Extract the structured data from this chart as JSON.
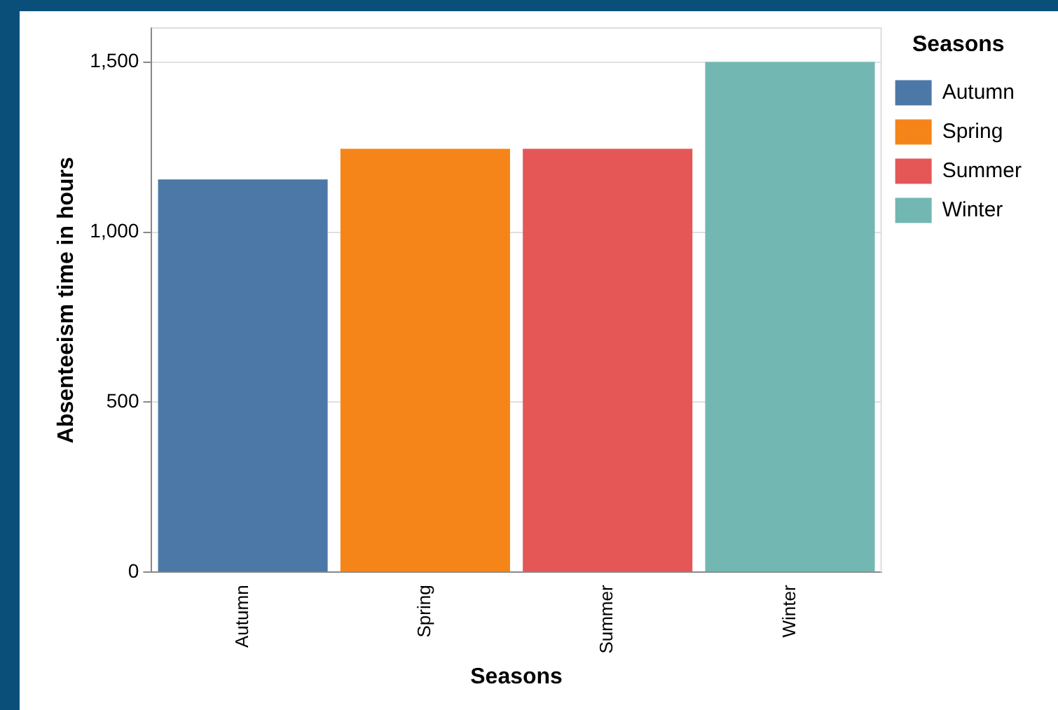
{
  "chart_data": {
    "type": "bar",
    "xlabel": "Seasons",
    "ylabel": "Absenteeism time in hours",
    "legend_title": "Seasons",
    "categories": [
      "Autumn",
      "Spring",
      "Summer",
      "Winter"
    ],
    "series": [
      {
        "name": "Autumn",
        "color": "#4c78a8",
        "values": [
          1155,
          null,
          null,
          null
        ]
      },
      {
        "name": "Spring",
        "color": "#f58518",
        "values": [
          null,
          1245,
          null,
          null
        ]
      },
      {
        "name": "Summer",
        "color": "#e45756",
        "values": [
          null,
          null,
          1245,
          null
        ]
      },
      {
        "name": "Winter",
        "color": "#72b7b2",
        "values": [
          null,
          null,
          null,
          1500
        ]
      }
    ],
    "ylim": [
      0,
      1600
    ],
    "yticks": [
      {
        "value": 0,
        "label": "0"
      },
      {
        "value": 500,
        "label": "500"
      },
      {
        "value": 1000,
        "label": "1,000"
      },
      {
        "value": 1500,
        "label": "1,500"
      }
    ],
    "grid": "y",
    "legend": "right"
  }
}
